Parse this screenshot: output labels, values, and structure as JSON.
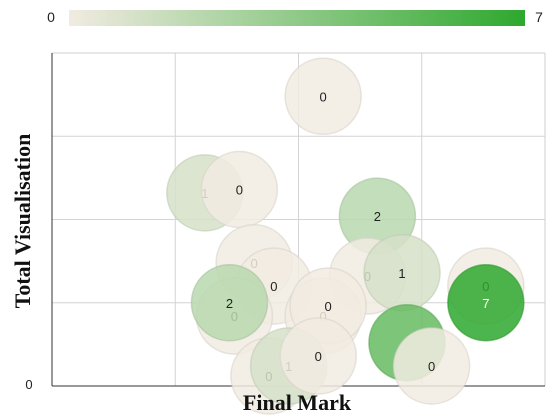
{
  "chart_data": {
    "type": "bubble",
    "xlabel": "Final Mark",
    "ylabel": "Total Visualisation",
    "y_tick_labels": [
      "0"
    ],
    "color_scale": {
      "min": 0,
      "max": 7,
      "min_label": "0",
      "max_label": "7",
      "min_color": "#f1ebe2",
      "max_color": "#2ea82e"
    },
    "grid": true,
    "x_divisions": 4,
    "y_divisions": 4,
    "xlim": [
      0,
      100
    ],
    "ylim": [
      0,
      100
    ],
    "bubbles": [
      {
        "x": 31,
        "y": 58,
        "value": 1,
        "label": "1"
      },
      {
        "x": 55,
        "y": 87,
        "value": 0,
        "label": "0"
      },
      {
        "x": 38,
        "y": 59,
        "value": 0,
        "label": "0"
      },
      {
        "x": 66,
        "y": 51,
        "value": 2,
        "label": "2"
      },
      {
        "x": 41,
        "y": 37,
        "value": 0,
        "label": "0"
      },
      {
        "x": 45,
        "y": 30,
        "value": 0,
        "label": "0"
      },
      {
        "x": 64,
        "y": 33,
        "value": 0,
        "label": "0"
      },
      {
        "x": 71,
        "y": 34,
        "value": 1,
        "label": "1"
      },
      {
        "x": 88,
        "y": 30,
        "value": 0,
        "label": "0"
      },
      {
        "x": 37,
        "y": 21,
        "value": 0,
        "label": "0"
      },
      {
        "x": 36,
        "y": 25,
        "value": 2,
        "label": "2"
      },
      {
        "x": 55,
        "y": 21,
        "value": 0,
        "label": "0"
      },
      {
        "x": 56,
        "y": 24,
        "value": 0,
        "label": "0"
      },
      {
        "x": 72,
        "y": 13,
        "value": 5,
        "label": ""
      },
      {
        "x": 77,
        "y": 6,
        "value": 0,
        "label": "0"
      },
      {
        "x": 44,
        "y": 3,
        "value": 0,
        "label": "0"
      },
      {
        "x": 48,
        "y": 6,
        "value": 1,
        "label": "1"
      },
      {
        "x": 54,
        "y": 9,
        "value": 0,
        "label": "0"
      },
      {
        "x": 88,
        "y": 25,
        "value": 7,
        "label": "7"
      }
    ]
  }
}
